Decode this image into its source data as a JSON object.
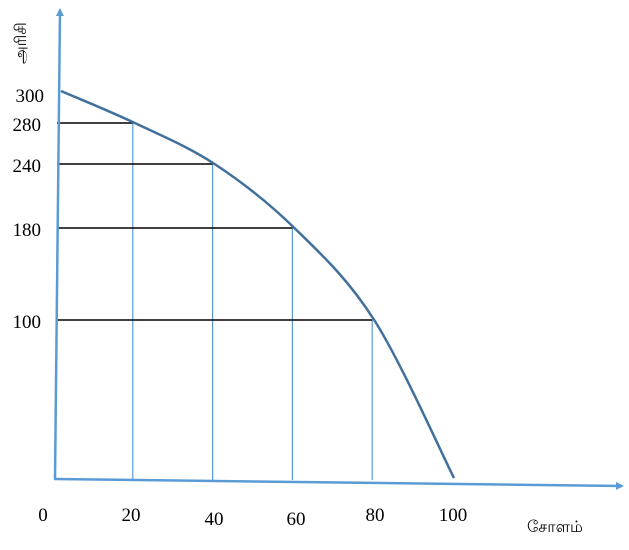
{
  "chart_data": {
    "type": "line",
    "title": "",
    "xlabel": "சோளம்",
    "ylabel": "அரிசி",
    "x_ticks": [
      "0",
      "20",
      "40",
      "60",
      "80",
      "100"
    ],
    "y_ticks": [
      "300",
      "280",
      "240",
      "180",
      "100"
    ],
    "xlim": [
      0,
      100
    ],
    "ylim": [
      0,
      300
    ],
    "series": [
      {
        "x": [
          0,
          20,
          40,
          60,
          80,
          100
        ],
        "y": [
          300,
          280,
          240,
          180,
          100,
          0
        ]
      }
    ],
    "guides": [
      {
        "x": 20,
        "y": 280
      },
      {
        "x": 40,
        "y": 240
      },
      {
        "x": 60,
        "y": 180
      },
      {
        "x": 80,
        "y": 100
      }
    ],
    "colors": {
      "curve": "#41709c",
      "axis": "#5b9bd5",
      "vertical_guide": "#5b9bd5",
      "horizontal_guide": "#000000"
    }
  }
}
